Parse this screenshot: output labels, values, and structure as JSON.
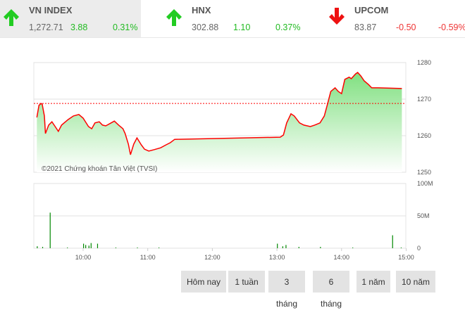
{
  "indices": [
    {
      "name": "VN INDEX",
      "value": "1,272.71",
      "change": "3.88",
      "percent": "0.31%",
      "direction": "up",
      "color": "#22bb22"
    },
    {
      "name": "HNX",
      "value": "302.88",
      "change": "1.10",
      "percent": "0.37%",
      "direction": "up",
      "color": "#22bb22"
    },
    {
      "name": "UPCOM",
      "value": "83.87",
      "change": "-0.50",
      "percent": "-0.59%",
      "direction": "down",
      "color": "#ee2222"
    }
  ],
  "buttons": [
    "Hôm nay",
    "1 tuần",
    "3 tháng",
    "6 tháng",
    "1 năm",
    "10 năm"
  ],
  "chart_data": [
    {
      "type": "area",
      "watermark": "©2021 Chứng khoán Tân Việt (TVSI)",
      "reference": 1268.83,
      "ylim": [
        1250,
        1280
      ],
      "yticks": [
        "1250",
        "1260",
        "1270",
        "1280"
      ],
      "line_color": "#ff0000",
      "fill_color": "#90e890",
      "x": [
        "9:17",
        "9:19",
        "9:21",
        "9:22",
        "9:24",
        "9:25",
        "9:28",
        "9:31",
        "9:34",
        "9:37",
        "9:40",
        "9:46",
        "9:51",
        "9:56",
        "10:00",
        "10:05",
        "10:08",
        "10:11",
        "10:15",
        "10:18",
        "10:21",
        "10:26",
        "10:29",
        "10:33",
        "10:37",
        "10:39",
        "10:42",
        "10:44",
        "10:47",
        "10:50",
        "10:54",
        "10:57",
        "11:01",
        "11:06",
        "11:12",
        "11:17",
        "11:21",
        "11:25",
        "13:03",
        "13:06",
        "13:09",
        "13:13",
        "13:16",
        "13:21",
        "13:25",
        "13:31",
        "13:35",
        "13:40",
        "13:44",
        "13:47",
        "13:50",
        "13:54",
        "13:57",
        "14:00",
        "14:03",
        "14:07",
        "14:09",
        "14:13",
        "14:15",
        "14:18",
        "14:21",
        "14:25",
        "14:28",
        "14:34",
        "14:56"
      ],
      "y": [
        1265.0,
        1268.3,
        1268.8,
        1268.6,
        1265.4,
        1260.6,
        1262.9,
        1263.8,
        1262.5,
        1261.2,
        1262.9,
        1264.4,
        1265.4,
        1265.8,
        1264.8,
        1262.5,
        1261.9,
        1263.5,
        1263.8,
        1262.9,
        1262.7,
        1263.5,
        1264.0,
        1262.9,
        1261.9,
        1260.6,
        1257.7,
        1254.8,
        1257.7,
        1259.4,
        1257.5,
        1256.3,
        1255.8,
        1256.2,
        1256.7,
        1257.5,
        1258.1,
        1259.0,
        1259.6,
        1260.2,
        1263.5,
        1266.0,
        1265.4,
        1263.5,
        1262.9,
        1262.5,
        1262.9,
        1263.5,
        1265.4,
        1268.7,
        1272.1,
        1273.1,
        1272.1,
        1271.5,
        1275.4,
        1276.0,
        1275.6,
        1276.9,
        1277.3,
        1276.3,
        1275.0,
        1274.0,
        1273.1,
        1273.1,
        1272.9
      ]
    },
    {
      "type": "bar",
      "ylim": [
        0,
        100
      ],
      "yticks": [
        "0",
        "50M",
        "100M"
      ],
      "xticks": [
        "10:00",
        "11:00",
        "12:00",
        "13:00",
        "14:00",
        "15:00"
      ],
      "bar_color": "#008800",
      "x": [
        "9:17",
        "9:22",
        "9:29",
        "9:45",
        "10:00",
        "10:02",
        "10:05",
        "10:07",
        "10:13",
        "10:30",
        "10:50",
        "11:10",
        "13:00",
        "13:05",
        "13:08",
        "13:20",
        "13:40",
        "14:10",
        "14:47",
        "14:55"
      ],
      "values": [
        3,
        2,
        55,
        1,
        7,
        5,
        4,
        8,
        7,
        1,
        1,
        1,
        7,
        3,
        5,
        2,
        2,
        1,
        20,
        1
      ]
    }
  ]
}
